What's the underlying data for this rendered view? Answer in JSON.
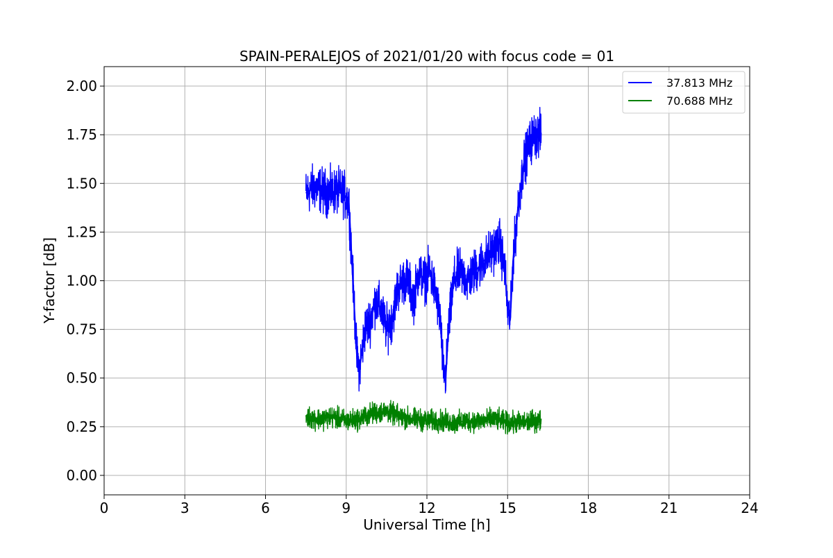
{
  "chart_data": {
    "type": "line",
    "title": "SPAIN-PERALEJOS of 2021/01/20 with focus code = 01",
    "xlabel": "Universal Time [h]",
    "ylabel": "Y-factor [dB]",
    "xlim": [
      0,
      24
    ],
    "ylim": [
      -0.1,
      2.1
    ],
    "xticks": [
      0,
      3,
      6,
      9,
      12,
      15,
      18,
      21,
      24
    ],
    "xtick_labels": [
      "0",
      "3",
      "6",
      "9",
      "12",
      "15",
      "18",
      "21",
      "24"
    ],
    "yticks": [
      0.0,
      0.25,
      0.5,
      0.75,
      1.0,
      1.25,
      1.5,
      1.75,
      2.0
    ],
    "ytick_labels": [
      "0.00",
      "0.25",
      "0.50",
      "0.75",
      "1.00",
      "1.25",
      "1.50",
      "1.75",
      "2.00"
    ],
    "grid": true,
    "legend_position": "top-right",
    "series": [
      {
        "name": "37.813 MHz",
        "color": "#0000ff",
        "x": [
          7.5,
          7.8,
          8.0,
          8.3,
          8.6,
          8.9,
          9.1,
          9.25,
          9.4,
          9.5,
          9.7,
          9.9,
          10.1,
          10.3,
          10.5,
          10.7,
          10.9,
          11.1,
          11.3,
          11.5,
          11.7,
          11.9,
          12.1,
          12.3,
          12.5,
          12.6,
          12.7,
          12.8,
          13.0,
          13.2,
          13.5,
          13.8,
          14.1,
          14.4,
          14.7,
          14.9,
          15.0,
          15.1,
          15.2,
          15.4,
          15.6,
          15.8,
          16.0,
          16.25
        ],
        "y": [
          1.45,
          1.48,
          1.47,
          1.45,
          1.46,
          1.45,
          1.4,
          1.0,
          0.6,
          0.55,
          0.75,
          0.8,
          0.9,
          0.85,
          0.75,
          0.8,
          0.95,
          1.0,
          1.0,
          0.9,
          1.05,
          1.0,
          1.05,
          0.95,
          0.8,
          0.55,
          0.5,
          0.75,
          1.0,
          1.05,
          1.0,
          1.05,
          1.1,
          1.15,
          1.2,
          1.05,
          0.85,
          0.8,
          1.1,
          1.4,
          1.6,
          1.7,
          1.75,
          1.75
        ]
      },
      {
        "name": "70.688 MHz",
        "color": "#008000",
        "x": [
          7.5,
          8.0,
          8.5,
          9.0,
          9.5,
          10.0,
          10.5,
          11.0,
          11.5,
          12.0,
          12.5,
          13.0,
          13.5,
          14.0,
          14.5,
          15.0,
          15.5,
          16.0,
          16.25
        ],
        "y": [
          0.3,
          0.29,
          0.3,
          0.28,
          0.29,
          0.32,
          0.33,
          0.3,
          0.29,
          0.28,
          0.28,
          0.27,
          0.28,
          0.28,
          0.29,
          0.27,
          0.27,
          0.28,
          0.28
        ]
      }
    ]
  }
}
